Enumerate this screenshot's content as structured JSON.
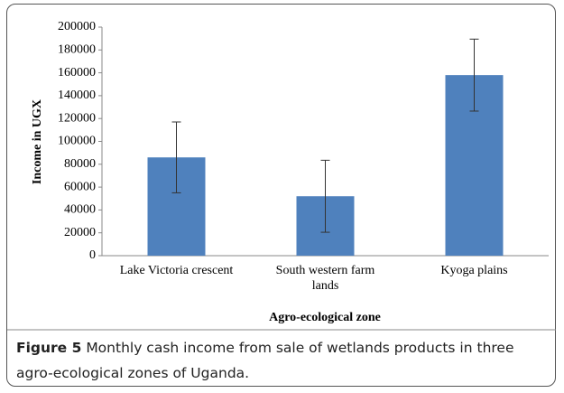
{
  "chart_data": {
    "type": "bar",
    "y_label": "Income in UGX",
    "x_label": "Agro-ecological zone",
    "categories": [
      "Lake Victoria crescent",
      "South western farm lands",
      "Kyoga plains"
    ],
    "values": [
      86000,
      52000,
      158000
    ],
    "errors": [
      31000,
      31500,
      31500
    ],
    "color": "#4f81bd",
    "ylim": [
      0,
      200000
    ],
    "yticks": [
      0,
      20000,
      40000,
      60000,
      80000,
      100000,
      120000,
      140000,
      160000,
      180000,
      200000
    ],
    "grid": false
  },
  "caption": {
    "label": "Figure 5",
    "text": "Monthly cash income from sale of wetlands products in three agro-ecological zones of Uganda."
  }
}
